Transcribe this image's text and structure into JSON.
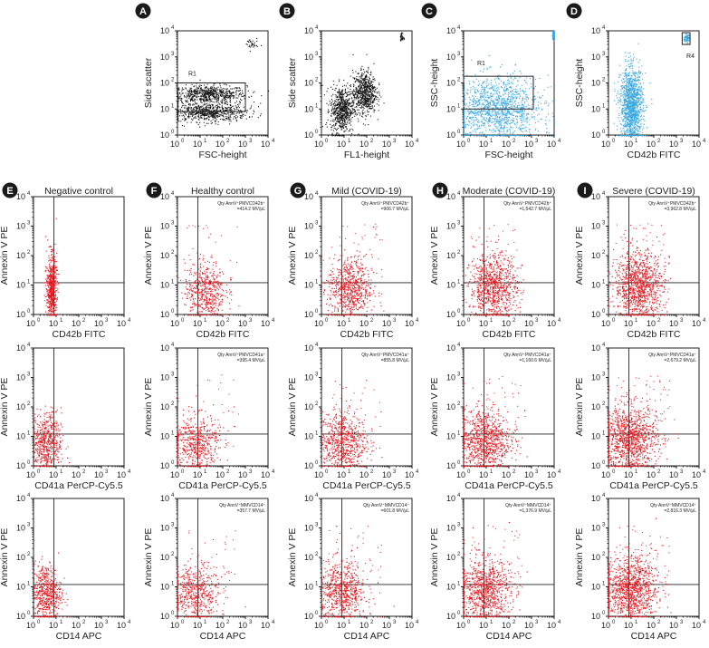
{
  "colors": {
    "black_events": "#111111",
    "blue_events": "#3aa8e0",
    "red_events": "#e8141c"
  },
  "chart_data": [
    {
      "id": "A",
      "type": "scatter",
      "xlabel": "FSC-height",
      "ylabel": "Side scatter",
      "scale": "log",
      "xlim": [
        1,
        10000
      ],
      "ylim": [
        1,
        10000
      ],
      "color": "black",
      "gate": {
        "type": "rect",
        "x": [
          1,
          1000
        ],
        "y": [
          8,
          100
        ],
        "label": "R1"
      },
      "populations": [
        {
          "x": [
            1,
            500
          ],
          "y": [
            20,
            70
          ],
          "density": "high"
        },
        {
          "x": [
            1,
            500
          ],
          "y": [
            4,
            15
          ],
          "density": "high"
        },
        {
          "x": [
            1000,
            3000
          ],
          "y": [
            2000,
            5000
          ],
          "density": "low"
        }
      ]
    },
    {
      "id": "B",
      "type": "scatter",
      "xlabel": "FL1-height",
      "ylabel": "Side scatter",
      "scale": "log",
      "xlim": [
        1,
        10000
      ],
      "ylim": [
        1,
        10000
      ],
      "color": "black",
      "populations": [
        {
          "x": [
            3,
            20
          ],
          "y": [
            2,
            50
          ],
          "density": "high"
        },
        {
          "x": [
            30,
            200
          ],
          "y": [
            10,
            200
          ],
          "density": "high"
        },
        {
          "x": [
            3000,
            4000
          ],
          "y": [
            4000,
            8000
          ],
          "density": "low"
        }
      ]
    },
    {
      "id": "C",
      "type": "scatter",
      "xlabel": "FSC-height",
      "ylabel": "SSC-height",
      "scale": "log",
      "xlim": [
        1,
        10000
      ],
      "ylim": [
        1,
        10000
      ],
      "color": "blue",
      "gate": {
        "type": "rect",
        "x": [
          1,
          1200
        ],
        "y": [
          10,
          180
        ],
        "label": "R1"
      },
      "populations": [
        {
          "x": [
            1,
            1000
          ],
          "y": [
            1,
            100
          ],
          "density": "high"
        },
        {
          "x": [
            8000,
            10000
          ],
          "y": [
            5000,
            10000
          ],
          "density": "low"
        }
      ]
    },
    {
      "id": "D",
      "type": "scatter",
      "xlabel": "CD42b FITC",
      "ylabel": "SSC-height",
      "scale": "log",
      "xlim": [
        1,
        10000
      ],
      "ylim": [
        1,
        10000
      ],
      "color": "blue",
      "gate": {
        "type": "rect",
        "x": [
          1800,
          4000
        ],
        "y": [
          3000,
          8500
        ],
        "label": "R4"
      },
      "populations": [
        {
          "x": [
            4,
            25
          ],
          "y": [
            1,
            200
          ],
          "density": "high"
        },
        {
          "x": [
            2200,
            3500
          ],
          "y": [
            4000,
            7000
          ],
          "density": "low"
        }
      ]
    }
  ],
  "groups": [
    {
      "badge": "E",
      "title": "Negative control"
    },
    {
      "badge": "F",
      "title": "Healthy control"
    },
    {
      "badge": "G",
      "title": "Mild (COVID-19)"
    },
    {
      "badge": "H",
      "title": "Moderate (COVID-19)"
    },
    {
      "badge": "I",
      "title": "Severe (COVID-19)"
    }
  ],
  "rows": [
    {
      "xlabel": "CD42b FITC",
      "ylabel": "Annexin V PE",
      "annots": [
        "",
        "Qty AnnV⁺PMVCD42b⁺ =414.2 MV/μL",
        "Qty AnnV⁺PMVCD42b⁺ =906.7 MV/μL",
        "Qty AnnV⁺PMVCD42b⁺ =1,542.7 MV/μL",
        "Qty AnnV⁺PMVCD42b⁺ =3,962.8 MV/μL"
      ]
    },
    {
      "xlabel": "CD41a PerCP-Cy5.5",
      "ylabel": "Annexin V PE",
      "annots": [
        "",
        "Qty AnnV⁺PMVCD41a⁺ =395.4 MV/μL",
        "Qty AnnV⁺PMVCD41a⁺ =855.8 MV/μL",
        "Qty AnnV⁺PMVCD41a⁺ =1,160.6 MV/μL",
        "Qty AnnV⁺PMVCD41a⁺ =2,679.2 MV/μL"
      ]
    },
    {
      "xlabel": "CD14 APC",
      "ylabel": "Annexin V PE",
      "annots": [
        "",
        "Qty AnnV⁺MMVCD14⁺ =357.7 MV/μL",
        "Qty AnnV⁺MMVCD14⁺ =601.8 MV/μL",
        "Qty AnnV⁺MMVCD14⁺ =1,376.9 MV/μL",
        "Qty AnnV⁺MMVCD14⁺ =2,816.3 MV/μL"
      ]
    }
  ],
  "quadrant_lines": {
    "x": 8,
    "y": 12
  },
  "tick_labels": [
    "10",
    "10",
    "10",
    "10",
    "10"
  ],
  "tick_exps": [
    "0",
    "1",
    "2",
    "3",
    "4"
  ],
  "region_labels": {
    "r1": "R1",
    "r4": "R4",
    "tiny_a": "R5"
  }
}
